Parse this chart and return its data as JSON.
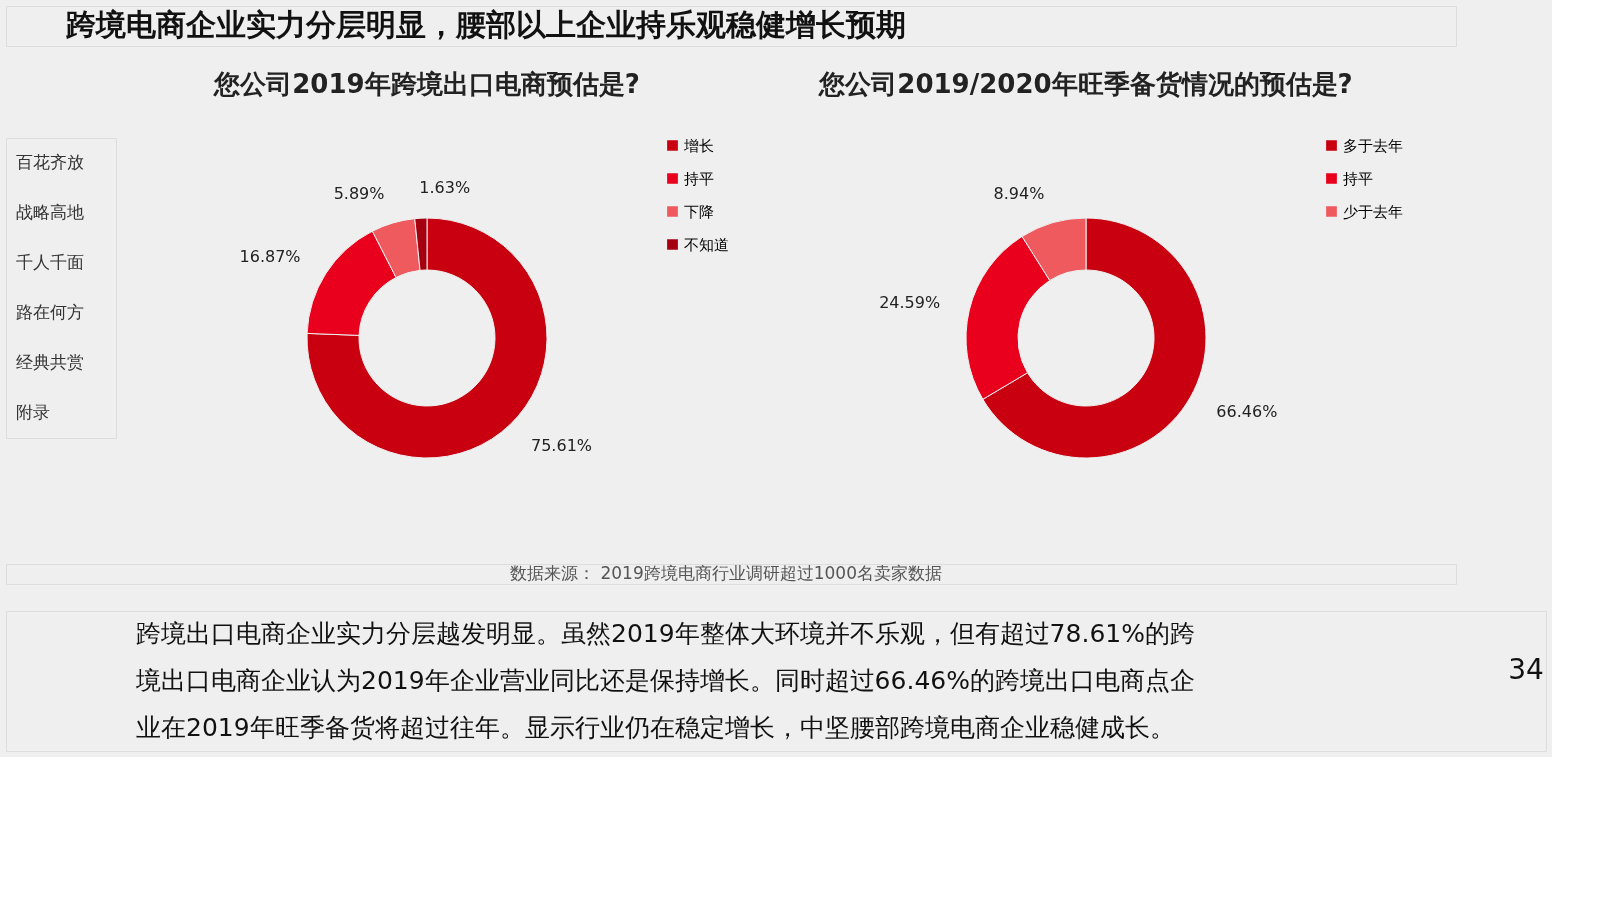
{
  "chart_data": [
    {
      "type": "other",
      "title": "跨境电商企业实力分层明显，腰部以上企业持乐观稳健增长预期",
      "annotations": [
        "百花齐放",
        "战略高地",
        "千人千面",
        "路在何方",
        "经典共赏",
        "附录",
        "数据来源： 2019跨境电商行业调研超过1000名卖家数据",
        "跨境出口电商企业实力分层越发明显。虽然2019年整体大环境并不乐观，但有超过78.61%的跨",
        "境出口电商企业认为2019年企业营业同比还是保持增长。同时超过66.46%的跨境出口电商点企",
        "业在2019年旺季备货将超过往年。显示行业仍在稳定增长，中坚腰部跨境电商企业稳健成长。",
        "34"
      ]
    },
    {
      "type": "donut",
      "title": "您公司2019年跨境出口电商预估是?",
      "categories": [
        "增长",
        "持平",
        "下降",
        "不知道"
      ],
      "values": [
        75.61,
        16.87,
        5.89,
        1.63
      ],
      "value_labels": [
        "75.61%",
        "16.87%",
        "5.89%",
        "1.63%"
      ],
      "colors": [
        "#c8000f",
        "#e8001c",
        "#ef5a5f",
        "#a50010"
      ],
      "legend": "right"
    },
    {
      "type": "donut",
      "title": "您公司2019/2020年旺季备货情况的预估是?",
      "categories": [
        "多于去年",
        "持平",
        "少于去年"
      ],
      "values": [
        66.46,
        24.59,
        8.94
      ],
      "value_labels": [
        "66.46%",
        "24.59%",
        "8.94%"
      ],
      "colors": [
        "#c8000f",
        "#e8001c",
        "#ef5a5f"
      ],
      "legend": "right"
    }
  ]
}
